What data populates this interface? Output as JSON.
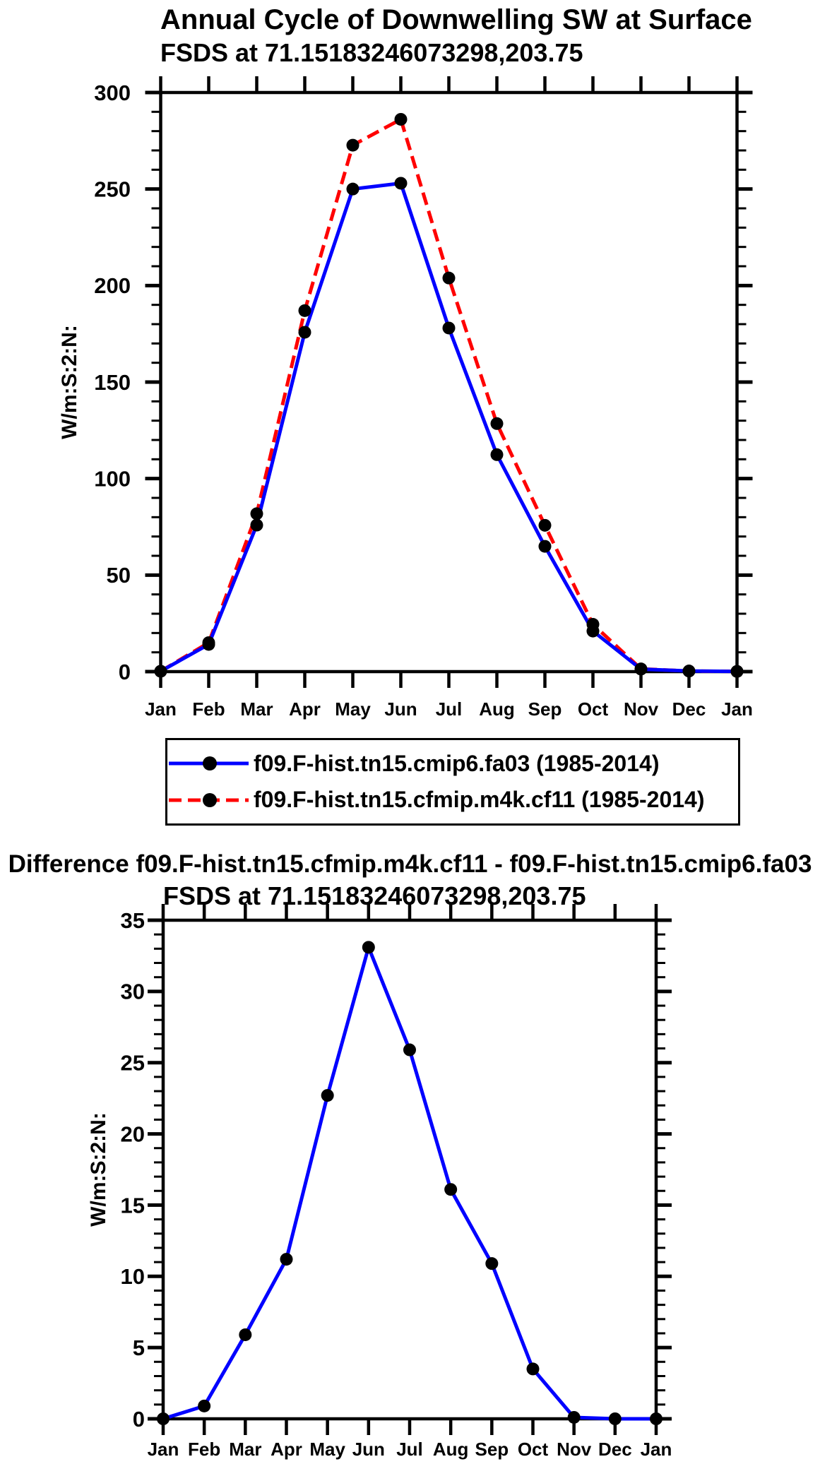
{
  "colors": {
    "background": "#ffffff",
    "axis": "#000000",
    "marker": "#000000",
    "series_blue": "#0000ff",
    "series_red": "#ff0000"
  },
  "chart_data": [
    {
      "type": "line",
      "title": "Annual Cycle of Downwelling SW at Surface",
      "subtitle": "FSDS at 71.15183246073298,203.75",
      "ylabel": "W/m:S:2:N:",
      "xlabel": "",
      "ylim": [
        0,
        300
      ],
      "ytick_major": 50,
      "ytick_minor": 10,
      "grid": false,
      "legend_position": "below",
      "categories": [
        "Jan",
        "Feb",
        "Mar",
        "Apr",
        "May",
        "Jun",
        "Jul",
        "Aug",
        "Sep",
        "Oct",
        "Nov",
        "Dec",
        "Jan"
      ],
      "series": [
        {
          "name": "f09.F-hist.tn15.cmip6.fa03 (1985-2014)",
          "color": "#0000ff",
          "line_style": "solid",
          "marker": "circle",
          "marker_color": "#000000",
          "values": [
            0.2,
            14.1,
            75.9,
            175.8,
            250.0,
            253.0,
            178.0,
            112.4,
            64.9,
            21.0,
            1.3,
            0.3,
            0.1
          ]
        },
        {
          "name": "f09.F-hist.tn15.cfmip.m4k.cf11 (1985-2014)",
          "color": "#ff0000",
          "line_style": "dashed",
          "marker": "circle",
          "marker_color": "#000000",
          "values": [
            0.2,
            15.0,
            81.8,
            187.0,
            272.7,
            286.1,
            203.9,
            128.5,
            75.8,
            24.5,
            1.4,
            0.3,
            0.1
          ]
        }
      ]
    },
    {
      "type": "line",
      "title": "Difference f09.F-hist.tn15.cfmip.m4k.cf11 - f09.F-hist.tn15.cmip6.fa03",
      "subtitle": "FSDS at 71.15183246073298,203.75",
      "ylabel": "W/m:S:2:N:",
      "xlabel": "",
      "ylim": [
        0,
        35
      ],
      "ytick_major": 5,
      "ytick_minor": 1,
      "grid": false,
      "legend_position": "none",
      "categories": [
        "Jan",
        "Feb",
        "Mar",
        "Apr",
        "May",
        "Jun",
        "Jul",
        "Aug",
        "Sep",
        "Oct",
        "Nov",
        "Dec",
        "Jan"
      ],
      "series": [
        {
          "name": "difference",
          "color": "#0000ff",
          "line_style": "solid",
          "marker": "circle",
          "marker_color": "#000000",
          "values": [
            0.0,
            0.9,
            5.9,
            11.2,
            22.7,
            33.1,
            25.9,
            16.1,
            10.9,
            3.5,
            0.1,
            0.0,
            0.0
          ]
        }
      ]
    }
  ]
}
